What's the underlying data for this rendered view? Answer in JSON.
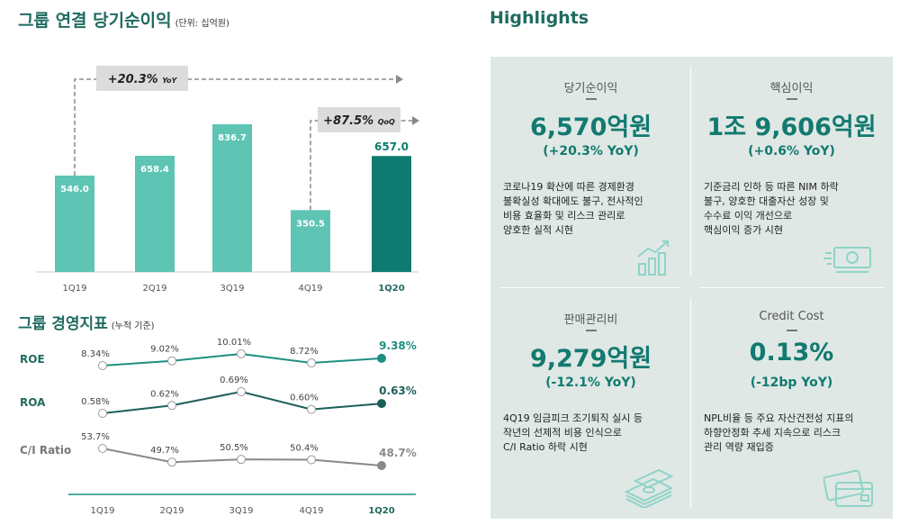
{
  "titles": {
    "net_income": "그룹 연결 당기순이익",
    "net_income_unit": "(단위: 십억원)",
    "mgmt": "그룹 경영지표",
    "mgmt_unit": "(누적 기준)",
    "highlights": "Highlights"
  },
  "chart_data": [
    {
      "type": "bar",
      "title": "그룹 연결 당기순이익",
      "unit": "(단위: 십억원)",
      "categories": [
        "1Q19",
        "2Q19",
        "3Q19",
        "4Q19",
        "1Q20"
      ],
      "values": [
        546.0,
        658.4,
        836.7,
        350.5,
        657.0
      ],
      "labels": [
        "546.0",
        "658.4",
        "836.7",
        "350.5",
        "657.0"
      ],
      "highlight_index": 4,
      "colors": {
        "normal": "#5ec4b4",
        "highlight": "#0e7b70"
      },
      "annotations": [
        {
          "text": "+20.3%",
          "suffix": "YoY"
        },
        {
          "text": "+87.5%",
          "suffix": "QoQ"
        }
      ]
    },
    {
      "type": "line",
      "title": "그룹 경영지표",
      "unit": "(누적 기준)",
      "categories": [
        "1Q19",
        "2Q19",
        "3Q19",
        "4Q19",
        "1Q20"
      ],
      "series": [
        {
          "name": "ROE",
          "values": [
            8.34,
            9.02,
            10.01,
            8.72,
            9.38
          ],
          "labels": [
            "8.34%",
            "9.02%",
            "10.01%",
            "8.72%",
            "9.38%"
          ],
          "color": "#1d8f82"
        },
        {
          "name": "ROA",
          "values": [
            0.58,
            0.62,
            0.69,
            0.6,
            0.63
          ],
          "labels": [
            "0.58%",
            "0.62%",
            "0.69%",
            "0.60%",
            "0.63%"
          ],
          "color": "#1c5f5a"
        },
        {
          "name": "C/I Ratio",
          "values": [
            53.7,
            49.7,
            50.5,
            50.4,
            48.7
          ],
          "labels": [
            "53.7%",
            "49.7%",
            "50.5%",
            "50.4%",
            "48.7%"
          ],
          "color": "#8a8a8a"
        }
      ]
    }
  ],
  "highlights": [
    {
      "title": "당기순이익",
      "value": "6,570억원",
      "change": "(+20.3% YoY)",
      "desc": "코로나19 확산에 따른 경제환경\n불확실성 확대에도 불구, 전사적인\n비용 효율화 및 리스크 관리로\n양호한 실적 시현",
      "icon": "growth-chart-icon"
    },
    {
      "title": "핵심이익",
      "value": "1조 9,606억원",
      "change": "(+0.6% YoY)",
      "desc": "기준금리 인하 등 따른 NIM 하락\n불구, 양호한 대출자산 성장 및\n수수료 이익 개선으로\n핵심이익 증가 시현",
      "icon": "banknote-icon"
    },
    {
      "title": "판매관리비",
      "value": "9,279억원",
      "change": "(-12.1% YoY)",
      "desc": "4Q19 임금피크 조기퇴직 실시 등\n작년의 선제적 비용 인식으로\nC/I Ratio 하락 시현",
      "icon": "money-stack-icon"
    },
    {
      "title": "Credit Cost",
      "value": "0.13%",
      "change": "(-12bp YoY)",
      "desc": "NPL비율 등 주요 자산건전성 지표의\n하향안정화 추세 지속으로 리스크\n관리 역량 재입증",
      "icon": "credit-card-icon"
    }
  ]
}
